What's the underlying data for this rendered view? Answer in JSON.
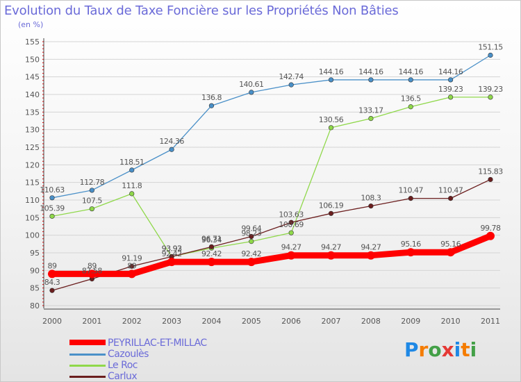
{
  "title": "Evolution du Taux de Taxe Foncière sur les Propriétés Non Bâties",
  "subtitle": "(en %)",
  "logo": {
    "letters": [
      "P",
      "r",
      "o",
      "x",
      "i",
      "t",
      "i"
    ],
    "colors": [
      "#1e88e5",
      "#f57c00",
      "#43a047",
      "#e53935",
      "#1e88e5",
      "#f57c00",
      "#43a047"
    ]
  },
  "chart_data": {
    "type": "line",
    "title": "Evolution du Taux de Taxe Foncière sur les Propriétés Non Bâties",
    "ylabel": "(en %)",
    "xlabel": "",
    "x": [
      "2000",
      "2001",
      "2002",
      "2003",
      "2004",
      "2005",
      "2006",
      "2007",
      "2008",
      "2009",
      "2010",
      "2011"
    ],
    "ylim": [
      80,
      155
    ],
    "yticks": [
      80,
      85,
      90,
      95,
      100,
      105,
      110,
      115,
      120,
      125,
      130,
      135,
      140,
      145,
      150,
      155
    ],
    "grid": true,
    "legend_position": "bottom-left",
    "series": [
      {
        "name": "PEYRILLAC-ET-MILLAC",
        "color": "#ff0000",
        "values": [
          89,
          89,
          89,
          92.42,
          92.42,
          92.42,
          94.27,
          94.27,
          94.27,
          95.16,
          95.16,
          99.78
        ],
        "labels": [
          "89",
          "89",
          "89",
          "92.42",
          "92.42",
          "92.42",
          "94.27",
          "94.27",
          "94.27",
          "95.16",
          "95.16",
          "99.78"
        ]
      },
      {
        "name": "Cazoulès",
        "color": "#4a90c8",
        "values": [
          110.63,
          112.78,
          118.51,
          124.36,
          136.8,
          140.61,
          142.74,
          144.16,
          144.16,
          144.16,
          144.16,
          151.15
        ],
        "labels": [
          "110.63",
          "112.78",
          "118.51",
          "124.36",
          "136.8",
          "140.61",
          "142.74",
          "144.16",
          "144.16",
          "144.16",
          "144.16",
          "151.15"
        ]
      },
      {
        "name": "Le Roc",
        "color": "#8fd84a",
        "values": [
          105.39,
          107.5,
          111.8,
          93.93,
          96.34,
          98.23,
          100.69,
          130.56,
          133.17,
          136.5,
          139.23,
          139.23
        ],
        "labels": [
          "105.39",
          "107.5",
          "111.8",
          "93.93",
          "96.34",
          "98.23",
          "100.69",
          "130.56",
          "133.17",
          "136.5",
          "139.23",
          "139.23"
        ]
      },
      {
        "name": "Carlux",
        "color": "#6b1e1e",
        "values": [
          84.3,
          87.58,
          91.19,
          93.92,
          96.71,
          99.64,
          103.63,
          106.19,
          108.3,
          110.47,
          110.47,
          115.83
        ],
        "labels": [
          "84.3",
          "87.58",
          "91.19",
          "93.92",
          "96.71",
          "99.64",
          "103.63",
          "106.19",
          "108.3",
          "110.47",
          "110.47",
          "115.83"
        ]
      }
    ]
  }
}
